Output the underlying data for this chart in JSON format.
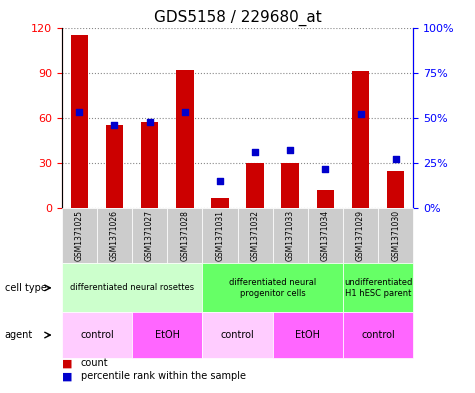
{
  "title": "GDS5158 / 229680_at",
  "samples": [
    "GSM1371025",
    "GSM1371026",
    "GSM1371027",
    "GSM1371028",
    "GSM1371031",
    "GSM1371032",
    "GSM1371033",
    "GSM1371034",
    "GSM1371029",
    "GSM1371030"
  ],
  "counts": [
    115,
    55,
    57,
    92,
    7,
    30,
    30,
    12,
    91,
    25
  ],
  "percentiles": [
    53,
    46,
    48,
    53,
    15,
    31,
    32,
    22,
    52,
    27
  ],
  "ylim_left": [
    0,
    120
  ],
  "ylim_right": [
    0,
    100
  ],
  "yticks_left": [
    0,
    30,
    60,
    90,
    120
  ],
  "yticks_right": [
    0,
    25,
    50,
    75,
    100
  ],
  "ytick_labels_left": [
    "0",
    "30",
    "60",
    "90",
    "120"
  ],
  "ytick_labels_right": [
    "0%",
    "25%",
    "50%",
    "75%",
    "100%"
  ],
  "cell_type_groups": [
    {
      "label": "differentiated neural rosettes",
      "start": 0,
      "end": 3,
      "color": "#ccffcc"
    },
    {
      "label": "differentiated neural\nprogenitor cells",
      "start": 4,
      "end": 7,
      "color": "#66ff66"
    },
    {
      "label": "undifferentiated\nH1 hESC parent",
      "start": 8,
      "end": 9,
      "color": "#66ff66"
    }
  ],
  "agent_groups": [
    {
      "label": "control",
      "start": 0,
      "end": 1,
      "color": "#ffccff"
    },
    {
      "label": "EtOH",
      "start": 2,
      "end": 3,
      "color": "#ff66ff"
    },
    {
      "label": "control",
      "start": 4,
      "end": 5,
      "color": "#ffccff"
    },
    {
      "label": "EtOH",
      "start": 6,
      "end": 7,
      "color": "#ff66ff"
    },
    {
      "label": "control",
      "start": 8,
      "end": 9,
      "color": "#ff66ff"
    }
  ],
  "bar_color": "#cc0000",
  "dot_color": "#0000cc",
  "grid_color": "#888888",
  "bg_color": "#ffffff",
  "sample_bg_color": "#cccccc"
}
